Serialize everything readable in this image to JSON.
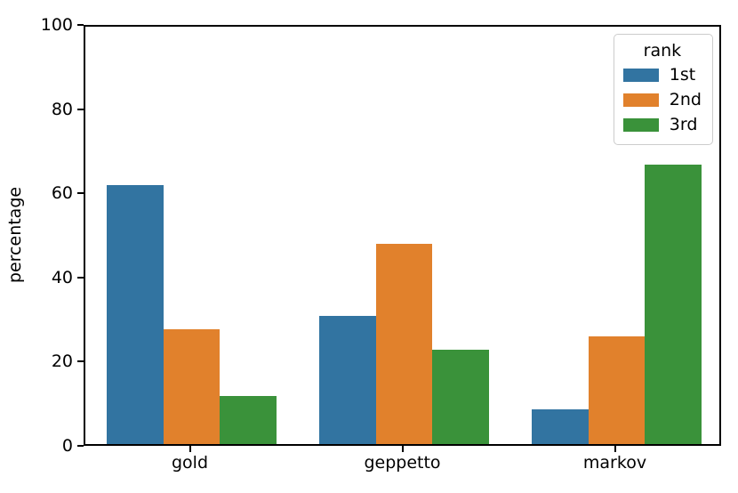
{
  "figure": {
    "background": "#ffffff",
    "text_color": "#000000"
  },
  "chart_data": {
    "type": "bar",
    "title": "",
    "xlabel": "",
    "ylabel": "percentage",
    "categories": [
      "gold",
      "geppetto",
      "markov"
    ],
    "series": [
      {
        "name": "1st",
        "color": "#3274a1",
        "values": [
          61.6,
          30.4,
          8.3
        ]
      },
      {
        "name": "2nd",
        "color": "#e1812c",
        "values": [
          27.2,
          47.6,
          25.5
        ]
      },
      {
        "name": "3rd",
        "color": "#3a923a",
        "values": [
          11.4,
          22.5,
          66.4
        ]
      }
    ],
    "ylim": [
      0,
      100
    ],
    "yticks": [
      0,
      20,
      40,
      60,
      80,
      100
    ],
    "legend": {
      "title": "rank",
      "position": "upper right",
      "labels": [
        "1st",
        "2nd",
        "3rd"
      ]
    },
    "grid": false,
    "bar_group_width_fraction": 0.8
  }
}
